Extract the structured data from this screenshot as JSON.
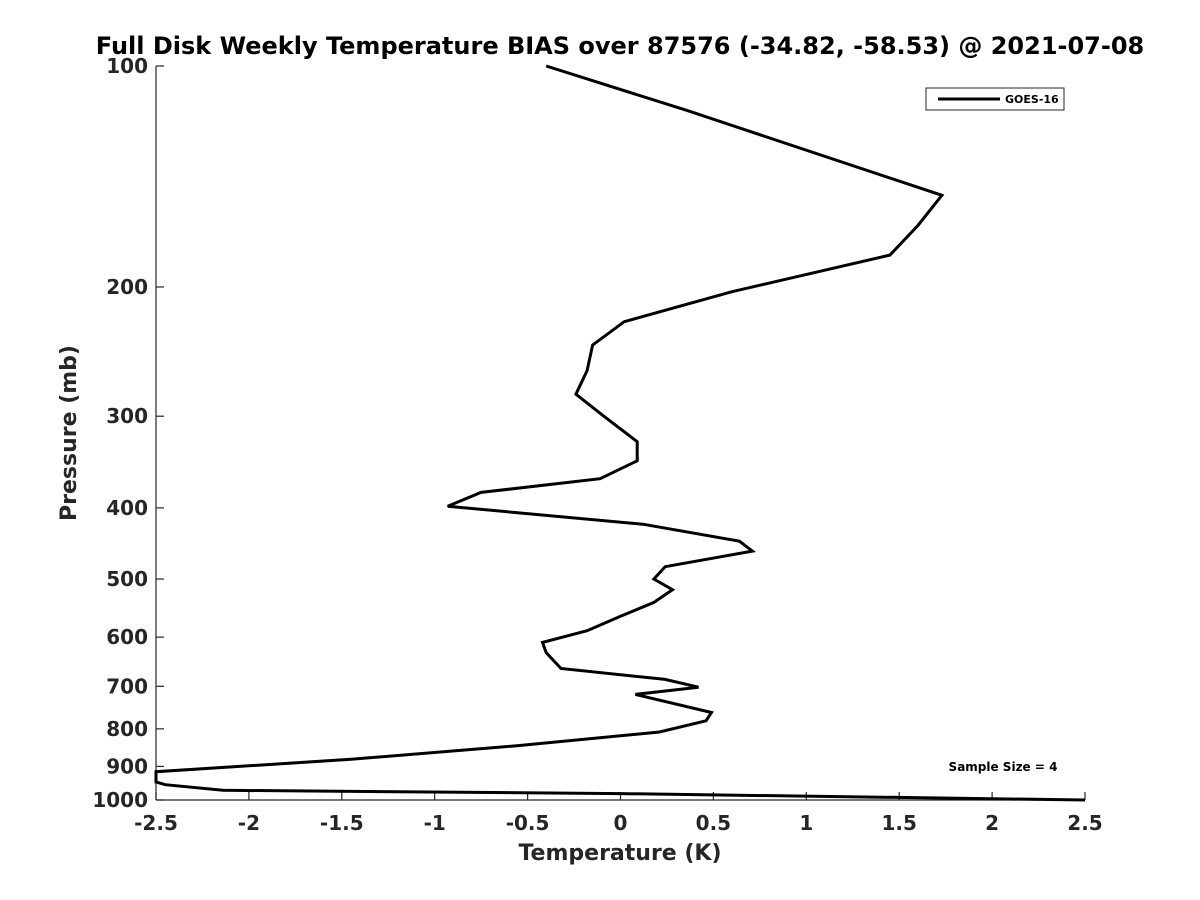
{
  "chart_data": {
    "type": "line",
    "title": "Full Disk Weekly Temperature BIAS over 87576 (-34.82, -58.53) @ 2021-07-08",
    "xlabel": "Temperature (K)",
    "ylabel": "Pressure (mb)",
    "xlim": [
      -2.5,
      2.5
    ],
    "ylim": [
      100,
      1000
    ],
    "y_scale": "log",
    "y_reversed": true,
    "grid": false,
    "legend_position": "top-right",
    "x_ticks": [
      -2.5,
      -2,
      -1.5,
      -1,
      -0.5,
      0,
      0.5,
      1,
      1.5,
      2,
      2.5
    ],
    "x_tick_labels": [
      "-2.5",
      "-2",
      "-1.5",
      "-1",
      "-0.5",
      "0",
      "0.5",
      "1",
      "1.5",
      "2",
      "2.5"
    ],
    "y_ticks": [
      100,
      200,
      300,
      400,
      500,
      600,
      700,
      800,
      900,
      1000
    ],
    "y_tick_labels": [
      "100",
      "200",
      "300",
      "400",
      "500",
      "600",
      "700",
      "800",
      "900",
      "1000"
    ],
    "annotation": "Sample Size = 4",
    "series": [
      {
        "name": "GOES-16",
        "color": "#000000",
        "points": [
          [
            -0.4,
            100
          ],
          [
            0.36,
            115
          ],
          [
            1.73,
            150
          ],
          [
            1.6,
            165
          ],
          [
            1.45,
            181
          ],
          [
            0.6,
            203
          ],
          [
            0.02,
            223
          ],
          [
            -0.15,
            240
          ],
          [
            -0.18,
            260
          ],
          [
            -0.24,
            280
          ],
          [
            -0.09,
            300
          ],
          [
            0.09,
            325
          ],
          [
            0.09,
            345
          ],
          [
            -0.11,
            365
          ],
          [
            -0.75,
            381
          ],
          [
            -0.93,
            398
          ],
          [
            0.12,
            421
          ],
          [
            0.64,
            444
          ],
          [
            0.71,
            458
          ],
          [
            0.24,
            481
          ],
          [
            0.18,
            500
          ],
          [
            0.28,
            517
          ],
          [
            0.18,
            538
          ],
          [
            0.0,
            562
          ],
          [
            -0.18,
            588
          ],
          [
            -0.42,
            610
          ],
          [
            -0.4,
            630
          ],
          [
            -0.32,
            662
          ],
          [
            0.24,
            685
          ],
          [
            0.42,
            702
          ],
          [
            0.08,
            718
          ],
          [
            0.49,
            760
          ],
          [
            0.46,
            780
          ],
          [
            0.21,
            808
          ],
          [
            -0.55,
            843
          ],
          [
            -1.45,
            880
          ],
          [
            -2.5,
            915
          ],
          [
            -2.5,
            945
          ],
          [
            -2.45,
            953
          ],
          [
            -2.14,
            970
          ],
          [
            0.0,
            980
          ],
          [
            2.5,
            1000
          ]
        ]
      }
    ]
  }
}
